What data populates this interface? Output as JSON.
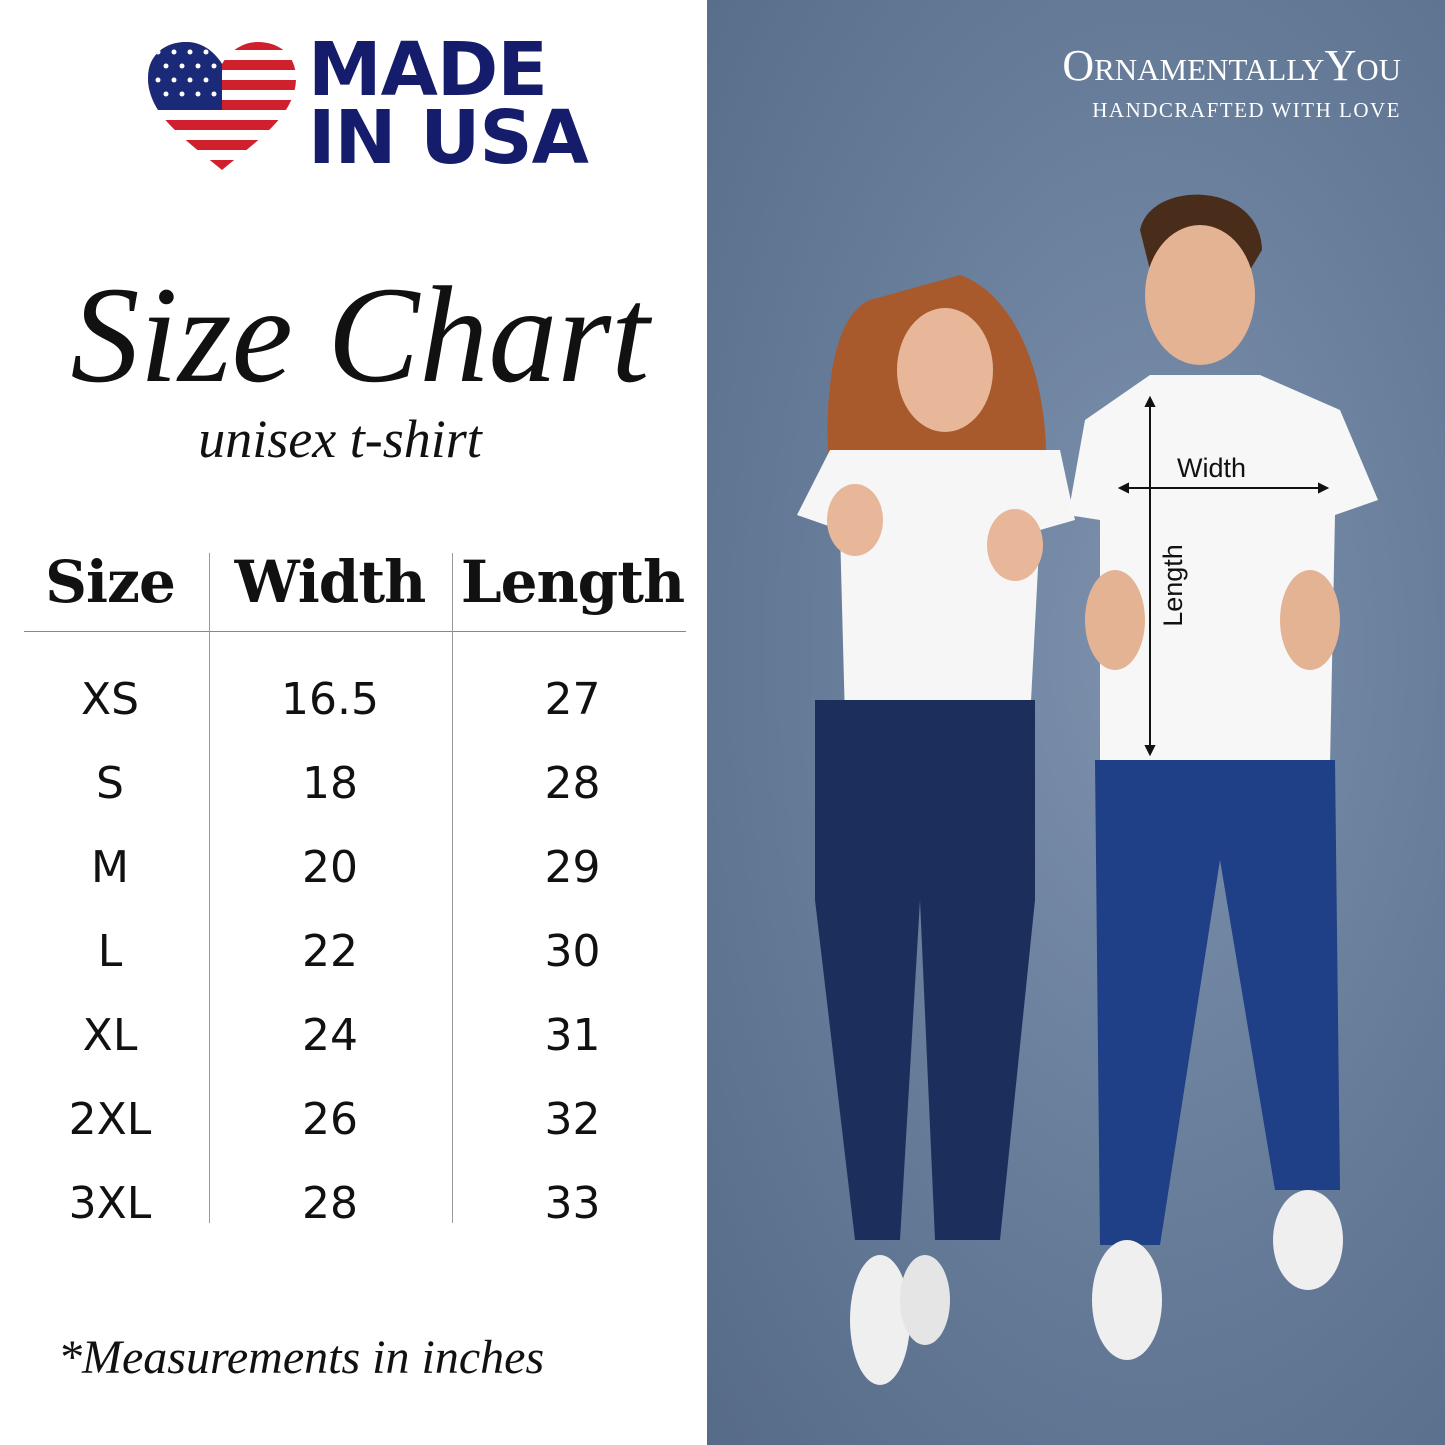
{
  "badge": {
    "line1": "MADE",
    "line2": "IN USA",
    "flag_colors": {
      "red": "#d0202e",
      "blue": "#1a2a78",
      "white": "#ffffff"
    }
  },
  "title": "Size Chart",
  "subtitle": "unisex t-shirt",
  "table": {
    "headers": [
      "Size",
      "Width",
      "Length"
    ],
    "rows": [
      [
        "XS",
        "16.5",
        "27"
      ],
      [
        "S",
        "18",
        "28"
      ],
      [
        "M",
        "20",
        "29"
      ],
      [
        "L",
        "22",
        "30"
      ],
      [
        "XL",
        "24",
        "31"
      ],
      [
        "2XL",
        "26",
        "32"
      ],
      [
        "3XL",
        "28",
        "33"
      ]
    ]
  },
  "footnote": "*Measurements in inches",
  "brand": {
    "name": "OrnamentallyYou",
    "tagline": "HANDCRAFTED WITH LOVE"
  },
  "measure_labels": {
    "width": "Width",
    "length": "Length"
  },
  "colors": {
    "navy": "#141c6b",
    "panel": "#6a7f9c"
  }
}
